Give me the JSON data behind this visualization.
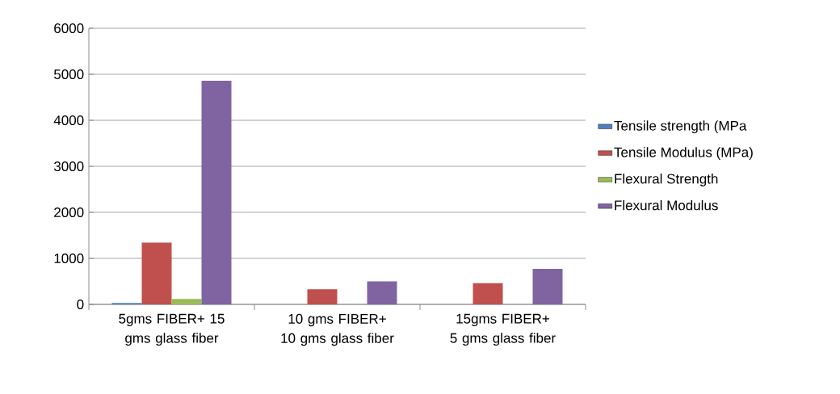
{
  "chart_data": {
    "type": "bar",
    "categories": [
      "5gms FIBER+ 15 gms glass fiber",
      "10 gms FIBER+ 10 gms glass fiber",
      "15gms FIBER+ 5 gms glass fiber"
    ],
    "series": [
      {
        "name": "Tensile strength (MPa",
        "color": "#4f81bd",
        "values": [
          30,
          null,
          null
        ]
      },
      {
        "name": "Tensile Modulus (MPa)",
        "color": "#c0504d",
        "values": [
          1340,
          330,
          460
        ]
      },
      {
        "name": "Flexural Strength",
        "color": "#9bbb59",
        "values": [
          120,
          null,
          null
        ]
      },
      {
        "name": "Flexural Modulus",
        "color": "#8064a2",
        "values": [
          4860,
          500,
          770
        ]
      }
    ],
    "ylim": [
      0,
      6000
    ],
    "yticks": [
      0,
      1000,
      2000,
      3000,
      4000,
      5000,
      6000
    ],
    "grid": "y",
    "legend": "right"
  }
}
